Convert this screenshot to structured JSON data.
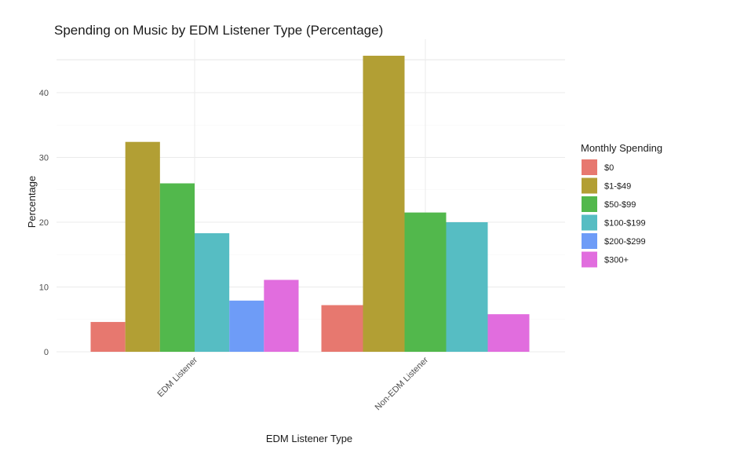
{
  "chart_data": {
    "type": "bar",
    "title": "Spending on Music by EDM Listener Type (Percentage)",
    "xlabel": "EDM Listener Type",
    "ylabel": "Percentage",
    "categories": [
      "EDM Listener",
      "Non-EDM Listener"
    ],
    "ylim": [
      0,
      46
    ],
    "yticks": [
      0,
      10,
      20,
      30,
      40
    ],
    "grid": true,
    "legend": {
      "title": "Monthly Spending",
      "placement": "right"
    },
    "series": [
      {
        "name": "$0",
        "color": "#E7786F",
        "values": [
          4.6,
          7.2
        ]
      },
      {
        "name": "$1-$49",
        "color": "#B29F34",
        "values": [
          32.4,
          45.7
        ]
      },
      {
        "name": "$50-$99",
        "color": "#52B84C",
        "values": [
          26.0,
          21.5
        ]
      },
      {
        "name": "$100-$199",
        "color": "#56BDC3",
        "values": [
          18.3,
          20.0
        ]
      },
      {
        "name": "$200-$299",
        "color": "#6E9CF7",
        "values": [
          7.9,
          null
        ]
      },
      {
        "name": "$300+",
        "color": "#E16DDE",
        "values": [
          11.1,
          5.8
        ]
      }
    ]
  }
}
